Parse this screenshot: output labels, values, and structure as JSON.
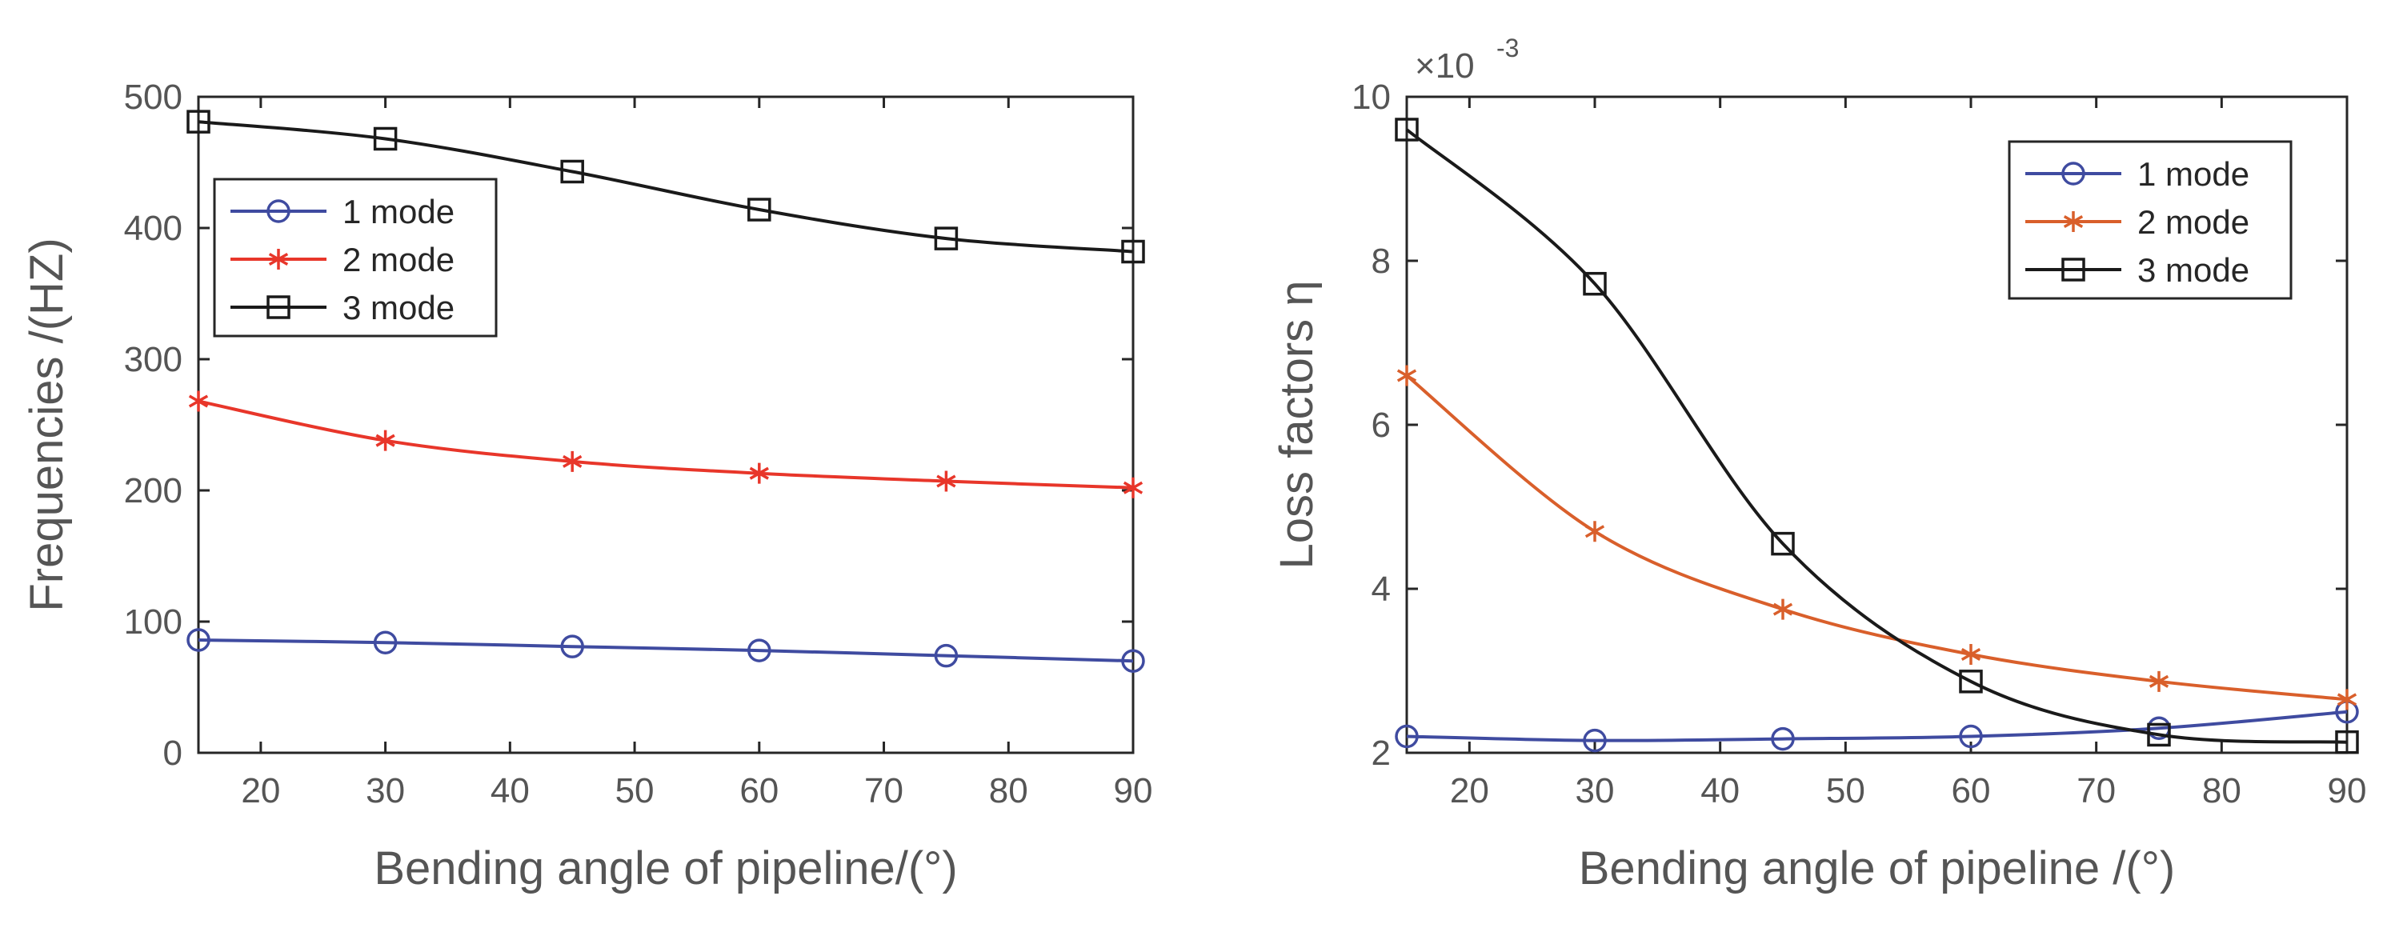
{
  "chart_data": [
    {
      "type": "line",
      "title": "",
      "xlabel": "Bending angle of pipeline/(°)",
      "ylabel": "Frequencies /(HZ)",
      "xlim": [
        15,
        90
      ],
      "ylim": [
        0,
        500
      ],
      "xticks": [
        20,
        30,
        40,
        50,
        60,
        70,
        80,
        90
      ],
      "yticks": [
        0,
        100,
        200,
        300,
        400,
        500
      ],
      "x": [
        15,
        30,
        45,
        60,
        75,
        90
      ],
      "legend_position": "top-left",
      "series": [
        {
          "name": "1 mode",
          "color": "#3f4ba0",
          "marker": "circle",
          "values": [
            86,
            84,
            81,
            78,
            74,
            70
          ]
        },
        {
          "name": "2 mode",
          "color": "#e8362a",
          "marker": "asterisk",
          "values": [
            268,
            238,
            222,
            213,
            207,
            202
          ]
        },
        {
          "name": "3 mode",
          "color": "#1a1a1a",
          "marker": "square",
          "values": [
            481,
            468,
            443,
            414,
            392,
            382
          ]
        }
      ]
    },
    {
      "type": "line",
      "title": "",
      "xlabel": "Bending angle of pipeline /(°)",
      "ylabel": "Loss factors η",
      "exponent_label": "×10",
      "exponent_power": "-3",
      "xlim": [
        15,
        90
      ],
      "ylim": [
        2,
        10
      ],
      "xticks": [
        20,
        30,
        40,
        50,
        60,
        70,
        80,
        90
      ],
      "yticks": [
        2,
        4,
        6,
        8,
        10
      ],
      "x": [
        15,
        30,
        45,
        60,
        75,
        90
      ],
      "legend_position": "top-right",
      "series": [
        {
          "name": "1 mode",
          "color": "#3f4ba0",
          "marker": "circle",
          "values": [
            2.2,
            2.15,
            2.17,
            2.2,
            2.3,
            2.5
          ]
        },
        {
          "name": "2 mode",
          "color": "#d95f2b",
          "marker": "asterisk",
          "values": [
            6.6,
            4.7,
            3.75,
            3.2,
            2.87,
            2.65
          ]
        },
        {
          "name": "3 mode",
          "color": "#1a1a1a",
          "marker": "square",
          "values": [
            9.6,
            7.72,
            4.55,
            2.87,
            2.22,
            2.13
          ]
        }
      ]
    }
  ]
}
